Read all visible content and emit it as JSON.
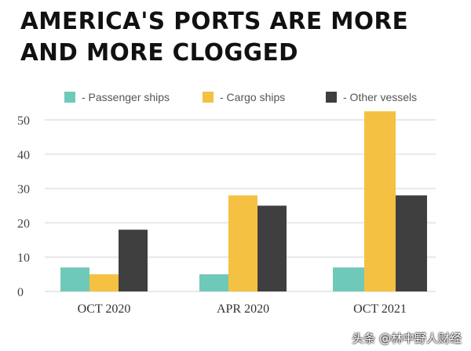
{
  "title_lines": [
    "AMERICA'S PORTS ARE MORE",
    "AND MORE CLOGGED"
  ],
  "watermark": "头条 @林中野人财经",
  "chart_data": {
    "type": "bar",
    "title": "AMERICA'S PORTS ARE MORE AND MORE CLOGGED",
    "categories": [
      "OCT 2020",
      "APR 2020",
      "OCT 2021"
    ],
    "series": [
      {
        "name": "- Passenger ships",
        "color": "#6fc9b8",
        "values": [
          7,
          5,
          7
        ]
      },
      {
        "name": "- Cargo ships",
        "color": "#f5c142",
        "values": [
          5,
          28,
          52.5
        ]
      },
      {
        "name": "- Other vessels",
        "color": "#3f3f3f",
        "values": [
          18,
          25,
          28
        ]
      }
    ],
    "yticks": [
      "0",
      "10",
      "20",
      "30",
      "40",
      "50"
    ],
    "ylim": [
      0,
      55
    ],
    "xlabel": "",
    "ylabel": "",
    "grid": true,
    "legend_position": "top"
  }
}
